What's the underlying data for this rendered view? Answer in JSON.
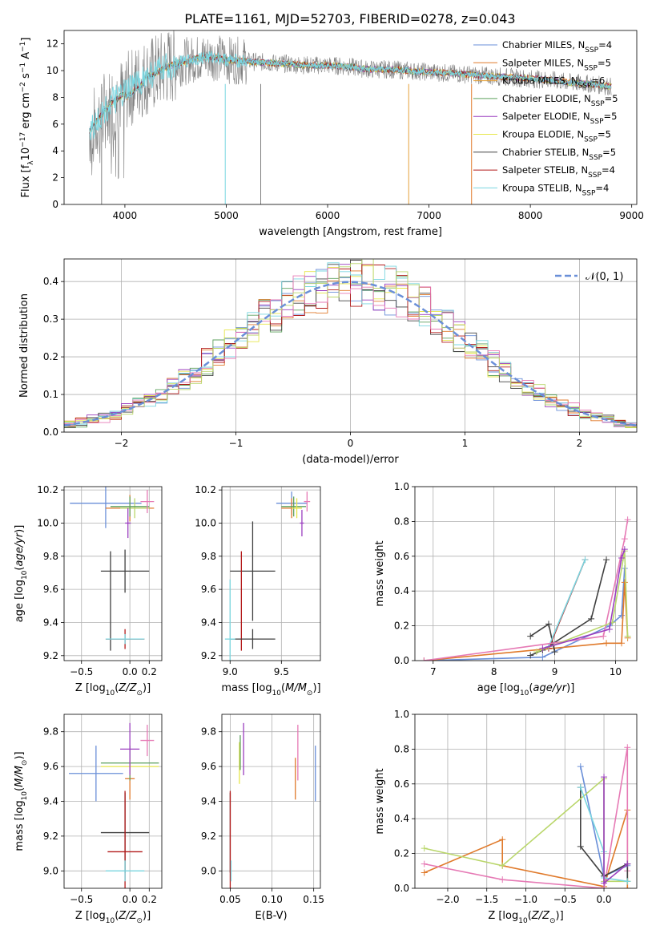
{
  "page_title": "PLATE=1161, MJD=52703, FIBERID=0278, z=0.043",
  "colors": {
    "chabrier_miles": "#6a8fd8",
    "salpeter_miles": "#e07a2b",
    "kroupa_miles": "#e07a2b",
    "chabrier_elodie": "#5da05d",
    "salpeter_elodie": "#9b3fbf",
    "kroupa_elodie": "#e6e64a",
    "chabrier_stelib": "#404040",
    "salpeter_stelib": "#b31b1b",
    "kroupa_stelib": "#7ad6e0",
    "pink": "#e67ab5",
    "light_green": "#b9d66a",
    "gray_spectrum": "#808080",
    "normal_curve": "#6a8fd8"
  },
  "chart_data": [
    {
      "id": "spectrum",
      "type": "line",
      "xlabel": "wavelength [Angstrom, rest frame]",
      "ylabel": "Flux [f_λ10^-17 erg cm^-2 s^-1 A^-1]",
      "xlim": [
        3400,
        9050
      ],
      "ylim": [
        0,
        13
      ],
      "xticks": [
        "4000",
        "5000",
        "6000",
        "7000",
        "8000",
        "9000"
      ],
      "yticks": [
        "0",
        "2",
        "4",
        "6",
        "8",
        "10",
        "12"
      ],
      "grid": false,
      "legend_position": "right",
      "legend": [
        {
          "label": "Chabrier MILES, N",
          "sub": "SSP",
          "suffix": "=4",
          "color": "#6a8fd8"
        },
        {
          "label": "Salpeter MILES, N",
          "sub": "SSP",
          "suffix": "=5",
          "color": "#e07a2b"
        },
        {
          "label": "Kroupa MILES, N",
          "sub": "SSP",
          "suffix": "=6",
          "color": "#e6a23c"
        },
        {
          "label": "Chabrier ELODIE, N",
          "sub": "SSP",
          "suffix": "=5",
          "color": "#5da05d"
        },
        {
          "label": "Salpeter ELODIE, N",
          "sub": "SSP",
          "suffix": "=5",
          "color": "#9b3fbf"
        },
        {
          "label": "Kroupa ELODIE, N",
          "sub": "SSP",
          "suffix": "=5",
          "color": "#e6e64a"
        },
        {
          "label": "Chabrier STELIB, N",
          "sub": "SSP",
          "suffix": "=5",
          "color": "#404040"
        },
        {
          "label": "Salpeter STELIB, N",
          "sub": "SSP",
          "suffix": "=4",
          "color": "#b31b1b"
        },
        {
          "label": "Kroupa STELIB, N",
          "sub": "SSP",
          "suffix": "=4",
          "color": "#7ad6e0"
        }
      ],
      "model_continuum": {
        "x": [
          3650,
          3700,
          3800,
          3900,
          4000,
          4100,
          4200,
          4300,
          4400,
          4500,
          4600,
          4700,
          4800,
          4900,
          5000,
          5200,
          5400,
          5600,
          5800,
          6000,
          6200,
          6400,
          6600,
          6800,
          7000,
          7200,
          7400,
          7600,
          7800,
          8000,
          8200,
          8400,
          8600,
          8800
        ],
        "y": [
          5.5,
          6.0,
          7.0,
          7.8,
          8.3,
          9.0,
          9.5,
          9.8,
          10.2,
          10.5,
          10.7,
          10.9,
          11.0,
          11.0,
          10.8,
          10.7,
          10.6,
          10.5,
          10.4,
          10.4,
          10.3,
          10.1,
          10.1,
          10.0,
          9.9,
          9.8,
          9.7,
          9.6,
          9.5,
          9.4,
          9.3,
          9.1,
          9.0,
          8.8
        ]
      }
    },
    {
      "id": "residuals",
      "type": "line",
      "xlabel": "(data-model)/error",
      "ylabel": "Normed distribution",
      "xlim": [
        -2.5,
        2.5
      ],
      "ylim": [
        0,
        0.46
      ],
      "xticks": [
        "−2",
        "−1",
        "0",
        "1",
        "2"
      ],
      "yticks": [
        "0.0",
        "0.1",
        "0.2",
        "0.3",
        "0.4"
      ],
      "grid": true,
      "legend_position": "top-right",
      "legend_label": "𝒩(0, 1)",
      "bin_width": 0.1
    },
    {
      "id": "age-vs-z",
      "type": "scatter",
      "xlabel": "Z [log10(Z/Z⊙)]",
      "ylabel": "age  [log10(age/yr)]",
      "xlim": [
        -0.68,
        0.33
      ],
      "ylim": [
        9.17,
        10.22
      ],
      "xticks": [
        "−0.5",
        "0.0",
        "0.2"
      ],
      "yticks": [
        "9.2",
        "9.4",
        "9.6",
        "9.8",
        "10.0",
        "10.2"
      ],
      "grid": true,
      "points": [
        {
          "x": -0.25,
          "y": 10.12,
          "xerr": 0.37,
          "yerr": 0.15,
          "color": "#6a8fd8"
        },
        {
          "x": 0.0,
          "y": 10.09,
          "xerr": 0.25,
          "yerr": 0.08,
          "color": "#e07a2b"
        },
        {
          "x": 0.05,
          "y": 10.09,
          "xerr": 0.15,
          "yerr": 0.06,
          "color": "#b9d66a"
        },
        {
          "x": 0.0,
          "y": 10.1,
          "xerr": 0.2,
          "yerr": 0.06,
          "color": "#5da05d"
        },
        {
          "x": -0.02,
          "y": 10.0,
          "xerr": 0.03,
          "yerr": 0.09,
          "color": "#9b3fbf"
        },
        {
          "x": 0.18,
          "y": 10.13,
          "xerr": 0.07,
          "yerr": 0.07,
          "color": "#e67ab5"
        },
        {
          "x": -0.05,
          "y": 9.71,
          "xerr": 0.25,
          "yerr": 0.13,
          "color": "#404040"
        },
        {
          "x": -0.2,
          "y": 9.53,
          "xerr": 0.0,
          "yerr": 0.3,
          "color": "#404040"
        },
        {
          "x": -0.05,
          "y": 9.3,
          "xerr": 0.2,
          "yerr": 0.06,
          "color": "#b31b1b"
        },
        {
          "x": -0.05,
          "y": 9.3,
          "xerr": 0.2,
          "yerr": 0.03,
          "color": "#7ad6e0"
        }
      ]
    },
    {
      "id": "age-vs-mass",
      "type": "scatter",
      "xlabel": "mass [log10(M/M⊙)]",
      "ylabel": "",
      "xlim": [
        8.92,
        9.88
      ],
      "ylim": [
        9.17,
        10.22
      ],
      "xticks": [
        "9.0",
        "9.5"
      ],
      "yticks": [
        "9.2",
        "9.4",
        "9.6",
        "9.8",
        "10.0",
        "10.2"
      ],
      "grid": true,
      "points": [
        {
          "x": 9.6,
          "y": 10.12,
          "xerr": 0.15,
          "yerr": 0.07,
          "color": "#6a8fd8"
        },
        {
          "x": 9.6,
          "y": 10.09,
          "xerr": 0.1,
          "yerr": 0.06,
          "color": "#e07a2b"
        },
        {
          "x": 9.62,
          "y": 10.1,
          "xerr": 0.12,
          "yerr": 0.06,
          "color": "#5da05d"
        },
        {
          "x": 9.65,
          "y": 10.09,
          "xerr": 0.05,
          "yerr": 0.06,
          "color": "#e6e64a"
        },
        {
          "x": 9.7,
          "y": 10.0,
          "xerr": 0.02,
          "yerr": 0.08,
          "color": "#9b3fbf"
        },
        {
          "x": 9.75,
          "y": 10.13,
          "xerr": 0.03,
          "yerr": 0.06,
          "color": "#e67ab5"
        },
        {
          "x": 9.22,
          "y": 9.71,
          "xerr": 0.22,
          "yerr": 0.3,
          "color": "#404040"
        },
        {
          "x": 9.11,
          "y": 9.53,
          "xerr": 0.0,
          "yerr": 0.3,
          "color": "#b31b1b"
        },
        {
          "x": 9.22,
          "y": 9.3,
          "xerr": 0.22,
          "yerr": 0.06,
          "color": "#404040"
        },
        {
          "x": 9.0,
          "y": 9.3,
          "xerr": 0.05,
          "yerr": 0.36,
          "color": "#7ad6e0"
        }
      ]
    },
    {
      "id": "weight-vs-age",
      "type": "line",
      "xlabel": "age  [log10(age/yr)]",
      "ylabel": "mass weight",
      "xlim": [
        6.7,
        10.35
      ],
      "ylim": [
        0,
        1.0
      ],
      "xticks": [
        "7",
        "8",
        "9",
        "10"
      ],
      "yticks": [
        "0.0",
        "0.2",
        "0.4",
        "0.6",
        "0.8",
        "1.0"
      ],
      "grid": true,
      "series": [
        {
          "color": "#6a8fd8",
          "x": [
            6.85,
            8.8,
            9.9,
            10.1,
            10.15
          ],
          "y": [
            0.0,
            0.02,
            0.2,
            0.26,
            0.53
          ]
        },
        {
          "color": "#e07a2b",
          "x": [
            6.85,
            9.85,
            10.1,
            10.15,
            10.2
          ],
          "y": [
            0.0,
            0.1,
            0.1,
            0.45,
            0.13
          ]
        },
        {
          "color": "#404040",
          "x": [
            8.6,
            8.8,
            9.6,
            9.85
          ],
          "y": [
            0.03,
            0.06,
            0.24,
            0.58
          ]
        },
        {
          "color": "#404040",
          "x": [
            8.6,
            8.9,
            9.0
          ],
          "y": [
            0.14,
            0.21,
            0.05
          ]
        },
        {
          "color": "#b31b1b",
          "x": [
            8.9,
            9.5
          ],
          "y": [
            0.07,
            0.58
          ]
        },
        {
          "color": "#7ad6e0",
          "x": [
            8.9,
            9.5
          ],
          "y": [
            0.08,
            0.58
          ]
        },
        {
          "color": "#e67ab5",
          "x": [
            6.85,
            9.8,
            10.15,
            10.2
          ],
          "y": [
            0.0,
            0.14,
            0.7,
            0.81
          ]
        },
        {
          "color": "#b9d66a",
          "x": [
            8.7,
            9.95,
            10.15,
            10.2
          ],
          "y": [
            0.05,
            0.22,
            0.63,
            0.14
          ]
        },
        {
          "color": "#9b3fbf",
          "x": [
            8.8,
            9.9,
            10.1,
            10.15
          ],
          "y": [
            0.07,
            0.18,
            0.59,
            0.64
          ]
        }
      ]
    },
    {
      "id": "mass-vs-z",
      "type": "scatter",
      "xlabel": "Z [log10(Z/Z⊙)]",
      "ylabel": "mass [log10(M/M⊙)]",
      "xlim": [
        -0.68,
        0.33
      ],
      "ylim": [
        8.9,
        9.9
      ],
      "xticks": [
        "−0.5",
        "0.0",
        "0.2"
      ],
      "yticks": [
        "9.0",
        "9.2",
        "9.4",
        "9.6",
        "9.8"
      ],
      "grid": true,
      "points": [
        {
          "x": -0.35,
          "y": 9.56,
          "xerr": 0.28,
          "yerr": 0.16,
          "color": "#6a8fd8"
        },
        {
          "x": 0.0,
          "y": 9.53,
          "xerr": 0.05,
          "yerr": 0.12,
          "color": "#e07a2b"
        },
        {
          "x": 0.0,
          "y": 9.62,
          "xerr": 0.3,
          "yerr": 0.1,
          "color": "#5da05d"
        },
        {
          "x": 0.0,
          "y": 9.6,
          "xerr": 0.3,
          "yerr": 0.05,
          "color": "#e6e64a"
        },
        {
          "x": 0.0,
          "y": 9.7,
          "xerr": 0.1,
          "yerr": 0.15,
          "color": "#9b3fbf"
        },
        {
          "x": 0.18,
          "y": 9.75,
          "xerr": 0.07,
          "yerr": 0.09,
          "color": "#e67ab5"
        },
        {
          "x": -0.05,
          "y": 9.22,
          "xerr": 0.25,
          "yerr": 0.23,
          "color": "#404040"
        },
        {
          "x": -0.05,
          "y": 9.11,
          "xerr": 0.18,
          "yerr": 0.35,
          "color": "#b31b1b"
        },
        {
          "x": -0.05,
          "y": 9.0,
          "xerr": 0.2,
          "yerr": 0.06,
          "color": "#7ad6e0"
        }
      ]
    },
    {
      "id": "mass-vs-ebv",
      "type": "scatter",
      "xlabel": "E(B-V)",
      "ylabel": "",
      "xlim": [
        0.04,
        0.158
      ],
      "ylim": [
        8.9,
        9.9
      ],
      "xticks": [
        "0.05",
        "0.10",
        "0.15"
      ],
      "yticks": [
        "9.0",
        "9.2",
        "9.4",
        "9.6",
        "9.8"
      ],
      "grid": true,
      "points": [
        {
          "x": 0.152,
          "y": 9.56,
          "xerr": 0,
          "yerr": 0.16,
          "color": "#6a8fd8"
        },
        {
          "x": 0.128,
          "y": 9.53,
          "xerr": 0,
          "yerr": 0.12,
          "color": "#e07a2b"
        },
        {
          "x": 0.131,
          "y": 9.68,
          "xerr": 0,
          "yerr": 0.16,
          "color": "#e67ab5"
        },
        {
          "x": 0.066,
          "y": 9.7,
          "xerr": 0,
          "yerr": 0.15,
          "color": "#9b3fbf"
        },
        {
          "x": 0.061,
          "y": 9.62,
          "xerr": 0,
          "yerr": 0.12,
          "color": "#e6e64a"
        },
        {
          "x": 0.062,
          "y": 9.68,
          "xerr": 0,
          "yerr": 0.1,
          "color": "#5da05d"
        },
        {
          "x": 0.05,
          "y": 9.22,
          "xerr": 0,
          "yerr": 0.23,
          "color": "#404040"
        },
        {
          "x": 0.05,
          "y": 9.11,
          "xerr": 0,
          "yerr": 0.35,
          "color": "#b31b1b"
        },
        {
          "x": 0.051,
          "y": 9.0,
          "xerr": 0,
          "yerr": 0.06,
          "color": "#7ad6e0"
        }
      ]
    },
    {
      "id": "weight-vs-z",
      "type": "line",
      "xlabel": "Z [log10(Z/Z⊙)]",
      "ylabel": "mass weight",
      "xlim": [
        -2.42,
        0.42
      ],
      "ylim": [
        0,
        1.0
      ],
      "xticks": [
        "−2.0",
        "−1.5",
        "−1.0",
        "−0.5",
        "0.0"
      ],
      "yticks": [
        "0.0",
        "0.2",
        "0.4",
        "0.6",
        "0.8",
        "1.0"
      ],
      "grid": true,
      "series": [
        {
          "color": "#6a8fd8",
          "x": [
            -0.3,
            0.0,
            0.3,
            0.3
          ],
          "y": [
            0.7,
            0.07,
            0.13,
            0.14
          ]
        },
        {
          "color": "#e07a2b",
          "x": [
            -2.3,
            -1.3,
            -1.3,
            0.0,
            0.3,
            0.3
          ],
          "y": [
            0.09,
            0.28,
            0.13,
            0.01,
            0.45,
            0.0
          ]
        },
        {
          "color": "#e67ab5",
          "x": [
            -2.3,
            -1.3,
            0.0,
            0.3,
            0.3
          ],
          "y": [
            0.14,
            0.05,
            0.0,
            0.81,
            0.1
          ]
        },
        {
          "color": "#404040",
          "x": [
            -0.3,
            -0.3,
            0.0,
            0.3,
            0.3
          ],
          "y": [
            0.58,
            0.24,
            0.07,
            0.14,
            0.04
          ]
        },
        {
          "color": "#b9d66a",
          "x": [
            -2.3,
            -1.3,
            0.0,
            0.0,
            0.3
          ],
          "y": [
            0.23,
            0.13,
            0.63,
            0.04,
            0.04
          ]
        },
        {
          "color": "#7ad6e0",
          "x": [
            -0.3,
            0.0,
            0.0,
            0.3
          ],
          "y": [
            0.58,
            0.21,
            0.06,
            0.04
          ]
        },
        {
          "color": "#9b3fbf",
          "x": [
            0.0,
            0.0,
            0.3
          ],
          "y": [
            0.64,
            0.03,
            0.14
          ]
        }
      ]
    }
  ]
}
